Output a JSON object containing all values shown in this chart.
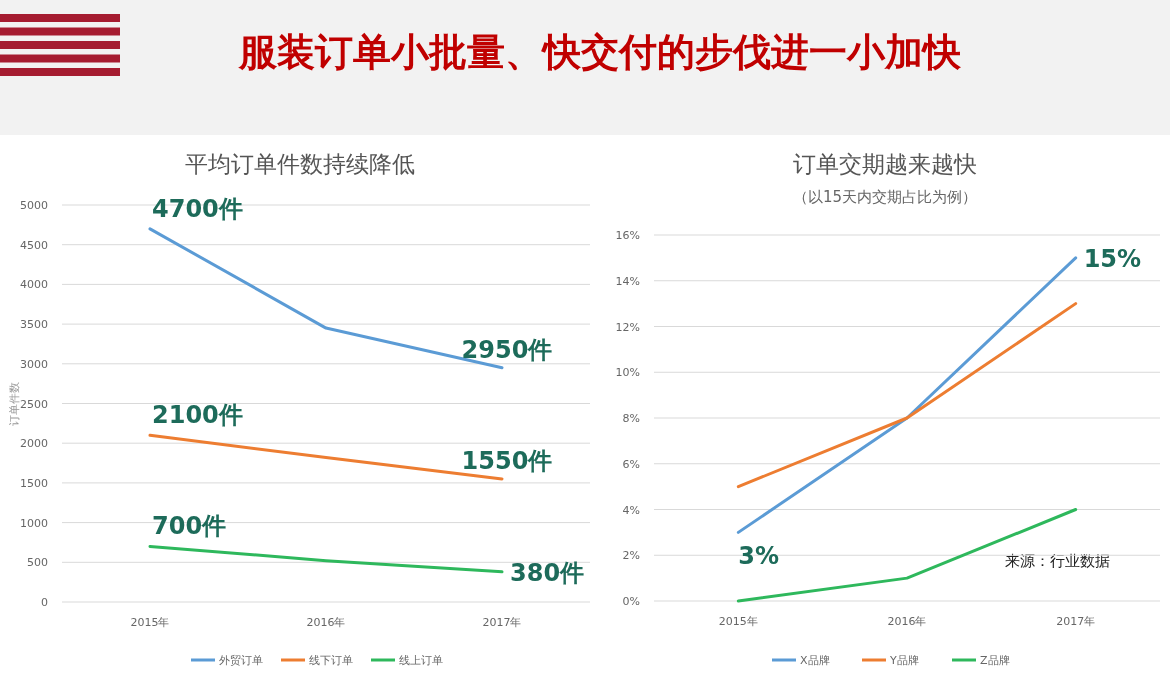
{
  "chart_data": [
    {
      "type": "line",
      "title": "平均订单件数持续降低",
      "ylabel": "订单件数",
      "annotations": [
        "服装订单小批量、快交付的步伐进一小加快"
      ],
      "categories": [
        "2015年",
        "2016年",
        "2017年"
      ],
      "ylim": [
        0,
        5000
      ],
      "yticks": [
        0,
        500,
        1000,
        1500,
        2000,
        2500,
        3000,
        3500,
        4000,
        4500,
        5000
      ],
      "grid": "y",
      "legend": "bottom",
      "marker": "none",
      "line_style": "solid",
      "series": [
        {
          "name": "外贸订单",
          "color": "#5b9bd5",
          "values": [
            4700,
            3450,
            2950
          ],
          "value_labels": [
            "4700件",
            null,
            "2950件"
          ]
        },
        {
          "name": "线下订单",
          "color": "#ed7d31",
          "values": [
            2100,
            1820,
            1550
          ],
          "value_labels": [
            "2100件",
            null,
            "1550件"
          ]
        },
        {
          "name": "线上订单",
          "color": "#2eb85c",
          "values": [
            700,
            520,
            380
          ],
          "value_labels": [
            "700件",
            null,
            "380件"
          ]
        }
      ]
    },
    {
      "type": "line",
      "title": "订单交期越来越快",
      "subtitle": "（以15天内交期占比为例）",
      "annotations": [
        "来源：行业数据"
      ],
      "categories": [
        "2015年",
        "2016年",
        "2017年"
      ],
      "ylim": [
        0,
        16
      ],
      "yticks": [
        {
          "value": 0,
          "label": "0%"
        },
        {
          "value": 2,
          "label": "2%"
        },
        {
          "value": 4,
          "label": "4%"
        },
        {
          "value": 6,
          "label": "6%"
        },
        {
          "value": 8,
          "label": "8%"
        },
        {
          "value": 10,
          "label": "10%"
        },
        {
          "value": 12,
          "label": "12%"
        },
        {
          "value": 14,
          "label": "14%"
        },
        {
          "value": 16,
          "label": "16%"
        }
      ],
      "grid": "y",
      "legend": "bottom",
      "marker": "none",
      "line_style": "solid",
      "series": [
        {
          "name": "X品牌",
          "color": "#5b9bd5",
          "values": [
            3,
            8,
            15
          ],
          "value_labels": [
            "3%",
            null,
            "15%"
          ]
        },
        {
          "name": "Y品牌",
          "color": "#ed7d31",
          "values": [
            5,
            8,
            13
          ]
        },
        {
          "name": "Z品牌",
          "color": "#2eb85c",
          "values": [
            0,
            1,
            4
          ]
        }
      ]
    }
  ]
}
